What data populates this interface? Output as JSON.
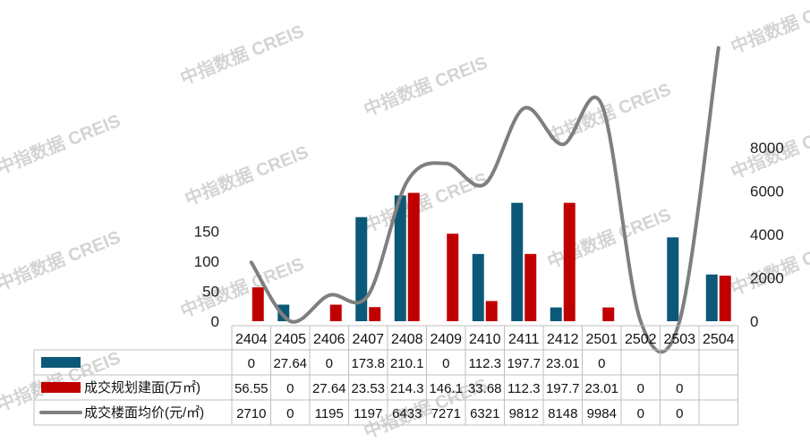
{
  "chart_data": {
    "type": "bar",
    "categories": [
      "2404",
      "2405",
      "2406",
      "2407",
      "2408",
      "2409",
      "2410",
      "2411",
      "2412",
      "2501",
      "2502",
      "2503",
      "2504"
    ],
    "series": [
      {
        "name": "",
        "kind": "bar",
        "color": "#0c5878",
        "values": [
          0,
          27.64,
          0,
          173.8,
          210.1,
          0,
          112.3,
          197.7,
          23.01,
          0,
          0,
          140,
          78
        ],
        "table_values": [
          "0",
          "27.64",
          "0",
          "173.8",
          "210.1",
          "0",
          "112.3",
          "197.7",
          "23.01",
          "0",
          "",
          "",
          ""
        ]
      },
      {
        "name": "成交规划建面(万㎡)",
        "kind": "bar",
        "color": "#c00000",
        "values": [
          56.55,
          0,
          27.64,
          23.53,
          214.3,
          146.1,
          33.68,
          112.3,
          197.7,
          23.01,
          0,
          0,
          76
        ],
        "table_values": [
          "56.55",
          "0",
          "27.64",
          "23.53",
          "214.3",
          "146.1",
          "33.68",
          "112.3",
          "197.7",
          "23.01",
          "0",
          "0",
          ""
        ]
      },
      {
        "name": "成交楼面均价(元/㎡)",
        "kind": "line",
        "axis": "right",
        "color": "#7f7f7f",
        "values": [
          2710,
          0,
          1195,
          1197,
          6433,
          7271,
          6321,
          9812,
          8148,
          9984,
          0,
          0,
          12600
        ],
        "table_values": [
          "2710",
          "0",
          "1195",
          "1197",
          "6433",
          "7271",
          "6321",
          "9812",
          "8148",
          "9984",
          "0",
          "0",
          ""
        ]
      }
    ],
    "y_left": {
      "ticks": [
        "0",
        "50",
        "100",
        "150"
      ],
      "ylim": [
        0,
        215
      ]
    },
    "y_right": {
      "ticks": [
        "0",
        "2000",
        "4000",
        "6000",
        "8000"
      ],
      "ylim": [
        0,
        12000
      ]
    },
    "grid": false,
    "legend": "data-table-below"
  },
  "watermark": "中指数据 CREIS"
}
